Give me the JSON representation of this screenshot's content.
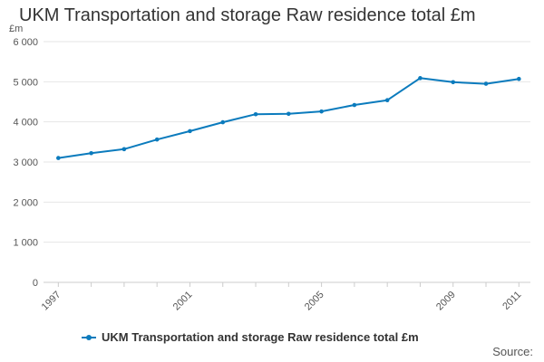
{
  "chart_data": {
    "type": "line",
    "title": "UKM Transportation and storage Raw residence total £m",
    "ylabel": "£m",
    "xlabel": "",
    "x": [
      1997,
      1998,
      1999,
      2000,
      2001,
      2002,
      2003,
      2004,
      2005,
      2006,
      2007,
      2008,
      2009,
      2010,
      2011
    ],
    "series": [
      {
        "name": "UKM Transportation and storage Raw residence total £m",
        "values": [
          3100,
          3220,
          3320,
          3560,
          3770,
          3990,
          4190,
          4200,
          4260,
          4420,
          4540,
          5090,
          4990,
          4950,
          5070
        ]
      }
    ],
    "ylim": [
      0,
      6000
    ],
    "yticks": [
      0,
      1000,
      2000,
      3000,
      4000,
      5000,
      6000
    ],
    "ytick_labels": [
      "0",
      "1 000",
      "2 000",
      "3 000",
      "4 000",
      "5 000",
      "6 000"
    ],
    "xticks_labeled": [
      1997,
      2001,
      2005,
      2009,
      2011
    ],
    "grid": true,
    "legend_position": "bottom",
    "source_label": "Source:",
    "colors": {
      "series": "#0b7bbd",
      "grid": "#e6e6e6",
      "axis": "#cccccc"
    }
  }
}
